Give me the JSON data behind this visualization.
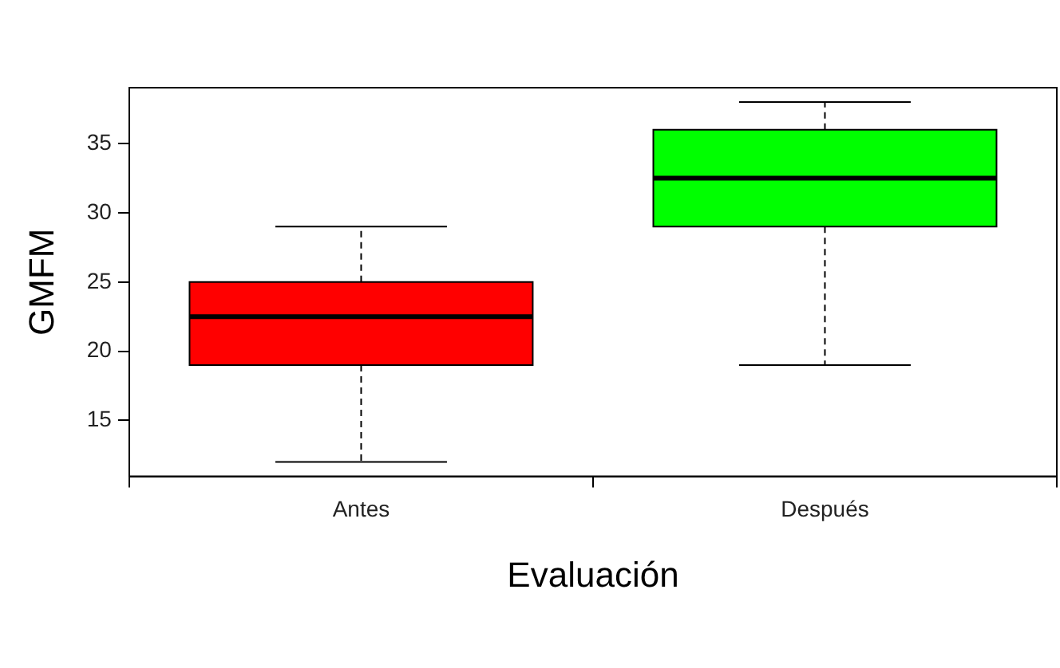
{
  "chart_data": {
    "type": "box",
    "xlabel": "Evaluación",
    "ylabel": "GMFM",
    "categories": [
      "Antes",
      "Después"
    ],
    "colors": [
      "#ff0000",
      "#00ff00"
    ],
    "boxes": [
      {
        "low": 12,
        "q1": 19,
        "median": 22.5,
        "q3": 25,
        "high": 29
      },
      {
        "low": 19,
        "q1": 29,
        "median": 32.5,
        "q3": 36,
        "high": 38
      }
    ],
    "ylim": [
      10.96,
      39.04
    ],
    "yticks": [
      15,
      20,
      25,
      30,
      35
    ]
  }
}
